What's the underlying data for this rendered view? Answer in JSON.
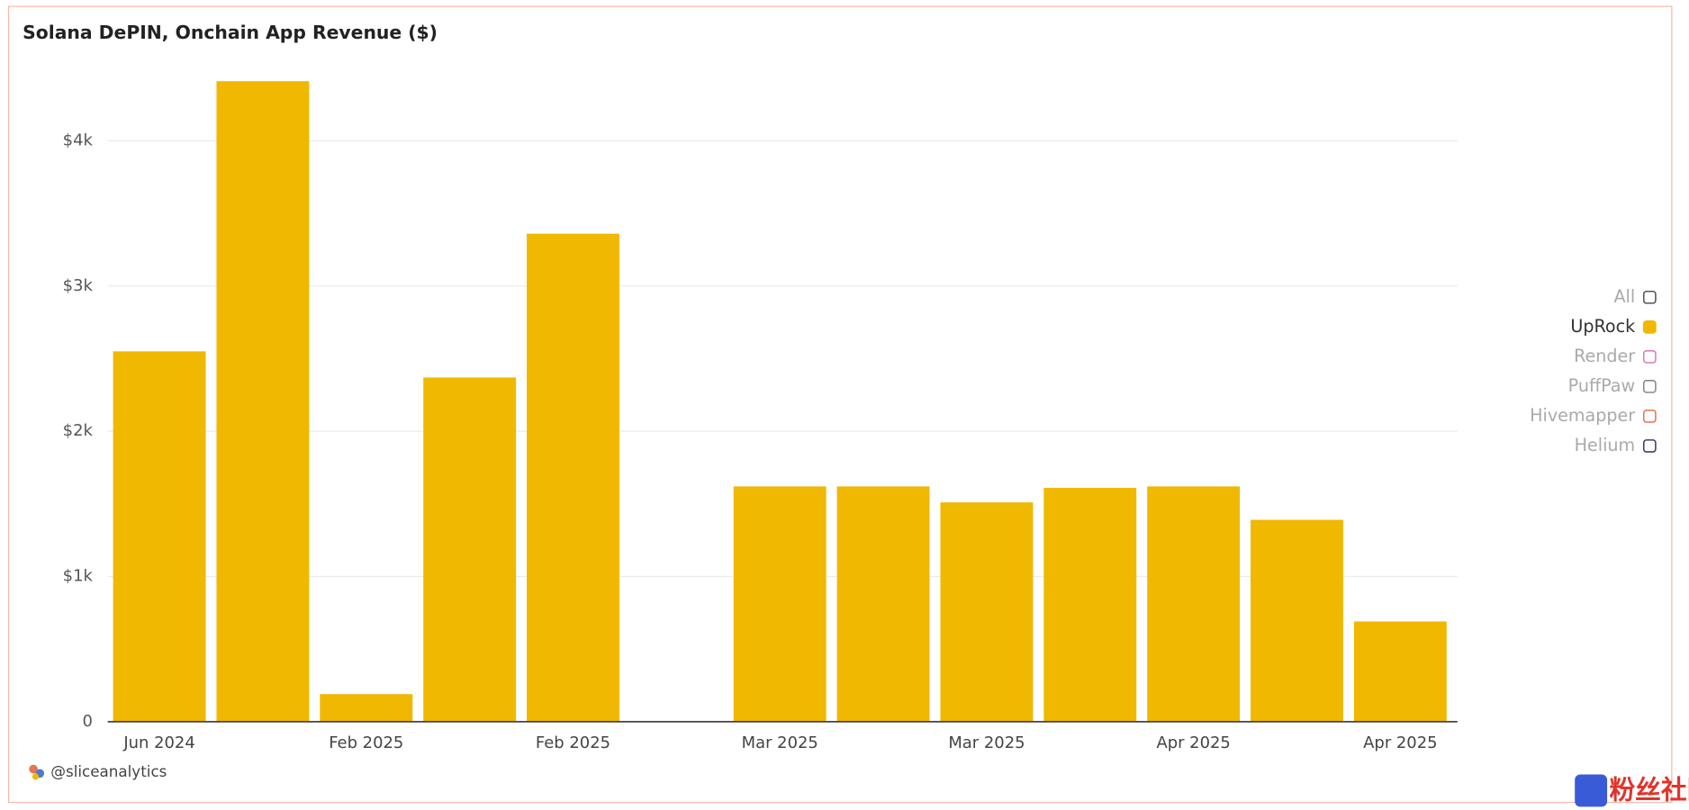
{
  "chart_data": {
    "type": "bar",
    "title": "Solana DePIN, Onchain App Revenue ($)",
    "categories": [
      "Jun 2024",
      null,
      "Feb 2025",
      null,
      "Feb 2025",
      null,
      "Mar 2025",
      null,
      "Mar 2025",
      null,
      "Apr 2025",
      null,
      "Apr 2025"
    ],
    "values": [
      2550,
      4410,
      190,
      2370,
      3360,
      null,
      1620,
      1620,
      1510,
      1610,
      1620,
      1390,
      690
    ],
    "color": "#f0b800",
    "ylim": [
      0,
      4450
    ],
    "yticks": [
      0,
      {
        "value": 1000,
        "label": "$1k"
      },
      {
        "value": 2000,
        "label": "$2k"
      },
      {
        "value": 3000,
        "label": "$3k"
      },
      {
        "value": 4000,
        "label": "$4k"
      }
    ],
    "grid": true,
    "legend": [
      {
        "name": "All",
        "color": "#555555",
        "selected": false
      },
      {
        "name": "UpRock",
        "color": "#f0b800",
        "selected": true
      },
      {
        "name": "Render",
        "color": "#d77fc0",
        "selected": false
      },
      {
        "name": "PuffPaw",
        "color": "#888888",
        "selected": false
      },
      {
        "name": "Hivemapper",
        "color": "#e8734f",
        "selected": false
      },
      {
        "name": "Helium",
        "color": "#3b3f66",
        "selected": false
      }
    ],
    "source": "@sliceanalytics"
  },
  "watermark": "粉丝社区"
}
